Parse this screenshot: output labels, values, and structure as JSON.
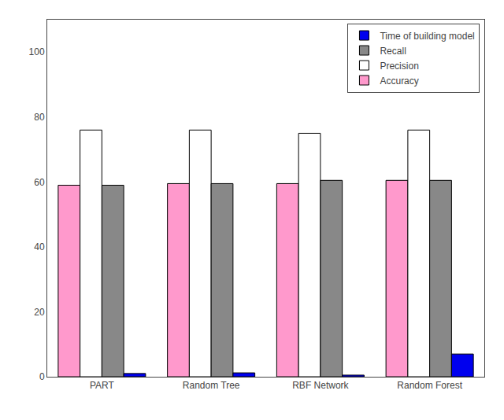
{
  "chart_data": {
    "type": "bar",
    "categories": [
      "PART",
      "Random Tree",
      "RBF Network",
      "Random Forest"
    ],
    "series": [
      {
        "name": "Accuracy",
        "color": "#FF99CC",
        "values": [
          59.0,
          59.5,
          59.5,
          60.5
        ]
      },
      {
        "name": "Precision",
        "color": "#ffffff",
        "values": [
          76.0,
          76.0,
          75.0,
          76.0
        ]
      },
      {
        "name": "Recall",
        "color": "#888888",
        "values": [
          59.0,
          59.5,
          60.5,
          60.5
        ]
      },
      {
        "name": "Time of building model",
        "color": "#0000EE",
        "values": [
          1.0,
          1.2,
          0.5,
          7.0
        ]
      }
    ],
    "ylim": [
      0,
      110
    ],
    "yticks": [
      0,
      20,
      40,
      60,
      80,
      100
    ],
    "grid": false,
    "legend": "upper right"
  }
}
